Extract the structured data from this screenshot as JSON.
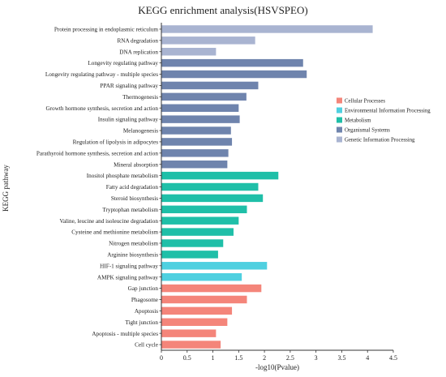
{
  "chart_data": {
    "type": "bar",
    "orientation": "horizontal",
    "title": "KEGG enrichment analysis(HSVSPEO)",
    "xlabel": "-log10(Pvalue)",
    "ylabel": "KEGG pathway",
    "xlim": [
      0,
      4.5
    ],
    "xticks": [
      "0",
      "0.5",
      "1",
      "1.5",
      "2",
      "2.5",
      "3",
      "3.5",
      "4",
      "4.5"
    ],
    "grid": false,
    "legend_position": "right",
    "groups": [
      {
        "name": "Cellular Processes",
        "color": "#f4857a"
      },
      {
        "name": "Environmental Information Processing",
        "color": "#4fd0e0"
      },
      {
        "name": "Metabolism",
        "color": "#1fbfa8"
      },
      {
        "name": "Organismal Systems",
        "color": "#6f84ad"
      },
      {
        "name": "Genetic Information Processing",
        "color": "#a9b4d1"
      }
    ],
    "bars": [
      {
        "label": "Protein processing in endoplasmic reticulum",
        "value": 4.1,
        "group": 4
      },
      {
        "label": "RNA degradation",
        "value": 1.82,
        "group": 4
      },
      {
        "label": "DNA replication",
        "value": 1.06,
        "group": 4
      },
      {
        "label": "Longevity regulating pathway",
        "value": 2.75,
        "group": 3
      },
      {
        "label": "Longevity regulating pathway - multiple species",
        "value": 2.82,
        "group": 3
      },
      {
        "label": "PPAR signaling pathway",
        "value": 1.88,
        "group": 3
      },
      {
        "label": "Thermogenesis",
        "value": 1.65,
        "group": 3
      },
      {
        "label": "Growth hormone synthesis, secretion and action",
        "value": 1.5,
        "group": 3
      },
      {
        "label": "Insulin signaling pathway",
        "value": 1.52,
        "group": 3
      },
      {
        "label": "Melanogenesis",
        "value": 1.35,
        "group": 3
      },
      {
        "label": "Regulation of lipolysis in adipocytes",
        "value": 1.37,
        "group": 3
      },
      {
        "label": "Parathyroid hormone synthesis, secretion and action",
        "value": 1.3,
        "group": 3
      },
      {
        "label": "Mineral absorption",
        "value": 1.28,
        "group": 3
      },
      {
        "label": "Inositol phosphate metabolism",
        "value": 2.27,
        "group": 2
      },
      {
        "label": "Fatty acid degradation",
        "value": 1.88,
        "group": 2
      },
      {
        "label": "Steroid biosynthesis",
        "value": 1.97,
        "group": 2
      },
      {
        "label": "Tryptophan metabolism",
        "value": 1.66,
        "group": 2
      },
      {
        "label": "Valine, leucine and isoleucine degradation",
        "value": 1.5,
        "group": 2
      },
      {
        "label": "Cysteine and methionine metabolism",
        "value": 1.4,
        "group": 2
      },
      {
        "label": "Nitrogen metabolism",
        "value": 1.2,
        "group": 2
      },
      {
        "label": "Arginine biosynthesis",
        "value": 1.1,
        "group": 2
      },
      {
        "label": "HIF-1 signaling pathway",
        "value": 2.05,
        "group": 1
      },
      {
        "label": "AMPK signaling pathway",
        "value": 1.56,
        "group": 1
      },
      {
        "label": "Gap junction",
        "value": 1.94,
        "group": 0
      },
      {
        "label": "Phagosome",
        "value": 1.66,
        "group": 0
      },
      {
        "label": "Apoptosis",
        "value": 1.37,
        "group": 0
      },
      {
        "label": "Tight junction",
        "value": 1.28,
        "group": 0
      },
      {
        "label": "Apoptosis - multiple species",
        "value": 1.06,
        "group": 0
      },
      {
        "label": "Cell cycle",
        "value": 1.15,
        "group": 0
      }
    ]
  }
}
